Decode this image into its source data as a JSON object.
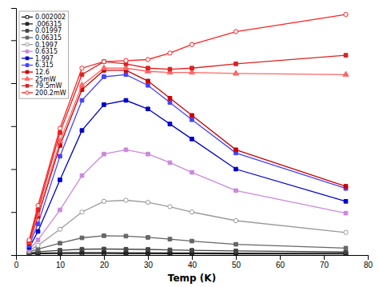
{
  "chart_data": {
    "type": "line",
    "x_label": "Temp (K)",
    "x": [
      3,
      5,
      10,
      15,
      20,
      25,
      30,
      35,
      40,
      50,
      75
    ],
    "xlim": [
      0,
      80
    ],
    "xticks": [
      0,
      10,
      20,
      30,
      40,
      50,
      60,
      70,
      80
    ],
    "ylim": [
      0,
      1.15
    ],
    "yticks": [
      0,
      0.2,
      0.4,
      0.6,
      0.8,
      1.0
    ],
    "tick_labels": "x",
    "legend": "upper left",
    "grid": false,
    "series": [
      {
        "name": "0.002002",
        "color": "#111111",
        "marker": "square-open",
        "values": [
          0.005,
          0.006,
          0.007,
          0.007,
          0.007,
          0.006,
          0.006,
          0.006,
          0.006,
          0.005,
          0.005
        ]
      },
      {
        "name": ".006315",
        "color": "#222222",
        "marker": "square",
        "values": [
          0.007,
          0.009,
          0.011,
          0.012,
          0.012,
          0.011,
          0.011,
          0.01,
          0.01,
          0.009,
          0.008
        ]
      },
      {
        "name": "0.01997",
        "color": "#444444",
        "marker": "square",
        "values": [
          0.01,
          0.015,
          0.022,
          0.027,
          0.028,
          0.027,
          0.026,
          0.024,
          0.022,
          0.019,
          0.014
        ]
      },
      {
        "name": "0.06315",
        "color": "#666666",
        "marker": "square",
        "values": [
          0.015,
          0.027,
          0.055,
          0.08,
          0.09,
          0.088,
          0.082,
          0.074,
          0.065,
          0.05,
          0.032
        ]
      },
      {
        "name": "0.1997",
        "color": "#999999",
        "marker": "circle-open",
        "values": [
          0.02,
          0.045,
          0.12,
          0.2,
          0.25,
          0.255,
          0.245,
          0.225,
          0.2,
          0.16,
          0.105
        ]
      },
      {
        "name": "0.6315",
        "color": "#cc88dd",
        "marker": "square",
        "values": [
          0.025,
          0.07,
          0.21,
          0.37,
          0.47,
          0.49,
          0.47,
          0.43,
          0.385,
          0.3,
          0.195
        ]
      },
      {
        "name": "1.997",
        "color": "#0000cc",
        "marker": "square",
        "values": [
          0.035,
          0.11,
          0.35,
          0.58,
          0.7,
          0.72,
          0.68,
          0.61,
          0.54,
          0.4,
          0.25
        ]
      },
      {
        "name": "6.315",
        "color": "#4444ff",
        "marker": "square",
        "values": [
          0.045,
          0.145,
          0.46,
          0.72,
          0.83,
          0.84,
          0.79,
          0.71,
          0.63,
          0.475,
          0.31
        ]
      },
      {
        "name": "12.6",
        "color": "#cc0000",
        "marker": "square",
        "values": [
          0.055,
          0.18,
          0.51,
          0.77,
          0.86,
          0.86,
          0.81,
          0.73,
          0.65,
          0.49,
          0.32
        ]
      },
      {
        "name": "25mW",
        "color": "#ff6666",
        "marker": "triangle",
        "values": [
          0.06,
          0.19,
          0.53,
          0.79,
          0.87,
          0.87,
          0.855,
          0.85,
          0.85,
          0.845,
          0.84
        ]
      },
      {
        "name": "79.5mW",
        "color": "#dd2222",
        "marker": "square",
        "values": [
          0.065,
          0.21,
          0.57,
          0.84,
          0.9,
          0.89,
          0.87,
          0.865,
          0.87,
          0.89,
          0.93
        ]
      },
      {
        "name": "200.2mW",
        "color": "#ff2222",
        "marker": "circle-open",
        "values": [
          0.07,
          0.23,
          0.59,
          0.87,
          0.9,
          0.905,
          0.91,
          0.94,
          0.98,
          1.04,
          1.12
        ]
      }
    ]
  }
}
